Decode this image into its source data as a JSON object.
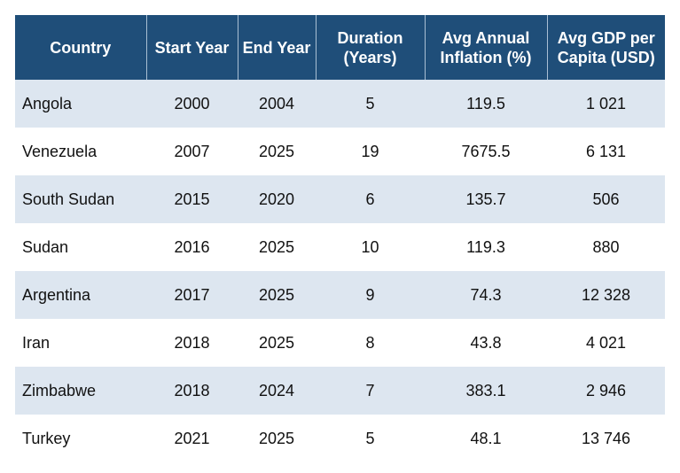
{
  "chart_data": {
    "type": "table",
    "columns": [
      "Country",
      "Start Year",
      "End Year",
      "Duration\n(Years)",
      "Avg Annual\nInflation (%)",
      "Avg GDP per\nCapita (USD)"
    ],
    "rows": [
      [
        "Angola",
        "2000",
        "2004",
        "5",
        "119.5",
        "1 021"
      ],
      [
        "Venezuela",
        "2007",
        "2025",
        "19",
        "7675.5",
        "6 131"
      ],
      [
        "South Sudan",
        "2015",
        "2020",
        "6",
        "135.7",
        "506"
      ],
      [
        "Sudan",
        "2016",
        "2025",
        "10",
        "119.3",
        "880"
      ],
      [
        "Argentina",
        "2017",
        "2025",
        "9",
        "74.3",
        "12 328"
      ],
      [
        "Iran",
        "2018",
        "2025",
        "8",
        "43.8",
        "4 021"
      ],
      [
        "Zimbabwe",
        "2018",
        "2024",
        "7",
        "383.1",
        "2 946"
      ],
      [
        "Turkey",
        "2021",
        "2025",
        "5",
        "48.1",
        "13 746"
      ]
    ]
  },
  "colors": {
    "header_bg": "#1f4e79",
    "header_text": "#ffffff",
    "band_row": "#dde6f0",
    "plain_row": "#ffffff"
  }
}
